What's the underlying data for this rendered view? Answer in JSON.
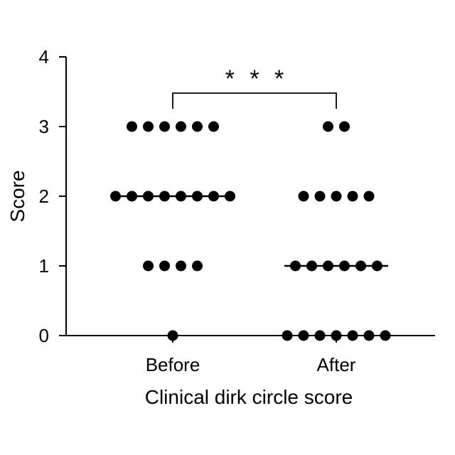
{
  "chart_data": {
    "type": "scatter",
    "subtype": "dot-plot",
    "title": "",
    "xlabel": "Clinical dirk circle score",
    "ylabel": "Score",
    "categories": [
      "Before",
      "After"
    ],
    "ylim": [
      0,
      4
    ],
    "yticks": [
      "0",
      "1",
      "2",
      "3",
      "4"
    ],
    "series": [
      {
        "category": "Before",
        "levels": [
          {
            "score": 3,
            "count": 6
          },
          {
            "score": 2,
            "count": 8
          },
          {
            "score": 1,
            "count": 4
          },
          {
            "score": 0,
            "count": 1
          }
        ],
        "median": 2
      },
      {
        "category": "After",
        "levels": [
          {
            "score": 3,
            "count": 2
          },
          {
            "score": 2,
            "count": 5
          },
          {
            "score": 1,
            "count": 6
          },
          {
            "score": 0,
            "count": 7
          }
        ],
        "median": 1
      }
    ],
    "significance": {
      "label": "* * *",
      "between": [
        "Before",
        "After"
      ]
    },
    "grid": false,
    "legend": "none",
    "colors": {
      "dots": "#000000",
      "axes": "#000000"
    }
  }
}
